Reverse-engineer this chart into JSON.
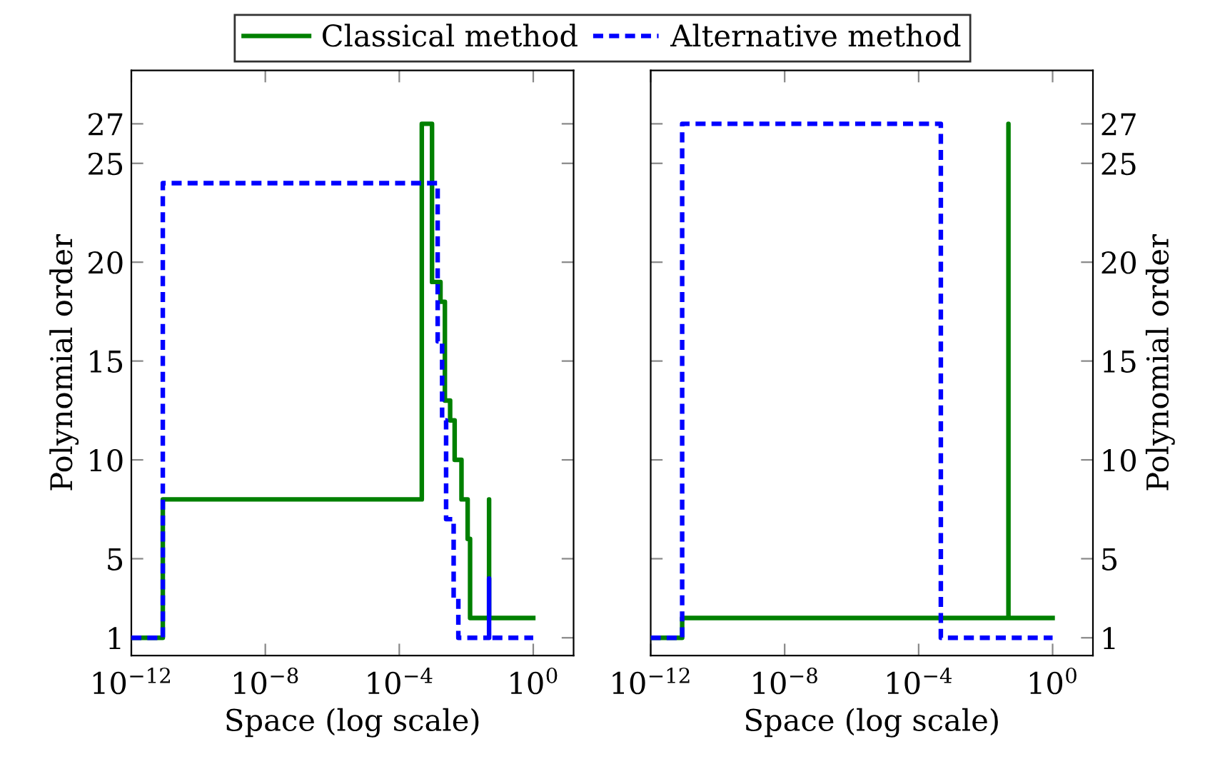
{
  "chart_data": [
    {
      "type": "step",
      "xlabel": "Space (log scale)",
      "ylabel": "Polynomial order",
      "log": "x",
      "legend": "top",
      "grid": false,
      "xlim": [
        1e-12,
        16
      ],
      "xticks": [
        {
          "value": 1e-12,
          "label": "10$^{−12}$"
        },
        {
          "value": 1e-08,
          "label": "10$^{−8}$"
        },
        {
          "value": 0.0001,
          "label": "10$^{−4}$"
        },
        {
          "value": 1,
          "label": "10$^{0}$"
        }
      ],
      "ylim": [
        0.1,
        29.7
      ],
      "yticks": [
        1,
        5,
        10,
        15,
        20,
        25,
        27
      ],
      "series": [
        {
          "name": "Classical method",
          "color": "#008000",
          "line_style": "solid",
          "x": [
            1e-12,
            8.7e-12,
            0.00047,
            0.00095,
            0.0017,
            0.0023,
            0.0033,
            0.0045,
            0.0072,
            0.011,
            0.013,
            0.048,
            0.048,
            1
          ],
          "values": [
            1,
            8,
            27,
            19,
            18,
            13,
            12,
            10,
            8,
            6,
            2,
            8,
            2,
            2
          ]
        },
        {
          "name": "Alternative method",
          "color": "#0000ff",
          "line_style": "dashed",
          "x": [
            1e-12,
            8.7e-12,
            0.0014,
            0.0019,
            0.0025,
            0.0042,
            0.0058,
            0.048,
            0.048,
            1
          ],
          "values": [
            1,
            24,
            16,
            12,
            7,
            3,
            1,
            4,
            1,
            1
          ]
        }
      ]
    },
    {
      "type": "step",
      "xlabel": "Space (log scale)",
      "ylabel": "Polynomial order",
      "log": "x",
      "grid": false,
      "xlim": [
        1e-12,
        16
      ],
      "xticks": [
        {
          "value": 1e-12,
          "label": "10$^{−12}$"
        },
        {
          "value": 1e-08,
          "label": "10$^{−8}$"
        },
        {
          "value": 0.0001,
          "label": "10$^{−4}$"
        },
        {
          "value": 1,
          "label": "10$^{0}$"
        }
      ],
      "ylim": [
        0.1,
        29.7
      ],
      "yticks": [
        1,
        5,
        10,
        15,
        20,
        25,
        27
      ],
      "series": [
        {
          "color": "#008000",
          "line_style": "solid",
          "x": [
            1e-12,
            8.7e-12,
            0.048,
            0.048,
            1
          ],
          "values": [
            1,
            2,
            27,
            2,
            2
          ]
        },
        {
          "color": "#0000ff",
          "line_style": "dashed",
          "x": [
            1e-12,
            8.7e-12,
            0.00046,
            1
          ],
          "values": [
            1,
            27,
            1,
            1
          ]
        }
      ]
    }
  ]
}
